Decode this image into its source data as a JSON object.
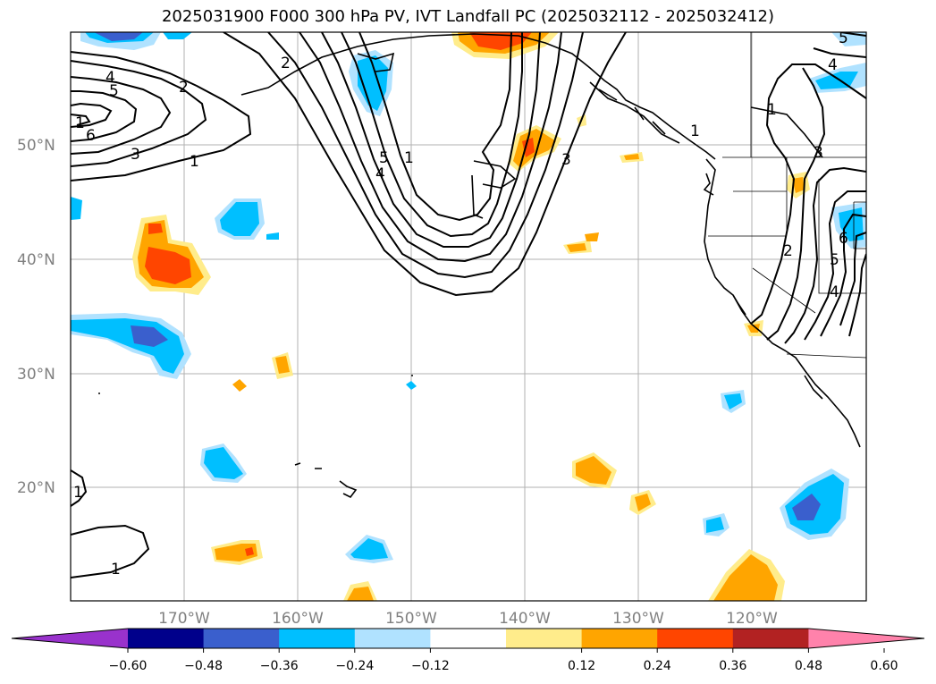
{
  "title": "2025031900 F000 300 hPa PV, IVT Landfall PC (2025032112 - 2025032412)",
  "lat_labels": [
    "50°N",
    "40°N",
    "30°N",
    "20°N"
  ],
  "lon_labels": [
    "170°W",
    "160°W",
    "150°W",
    "140°W",
    "130°W",
    "120°W"
  ],
  "colorbar": {
    "ticks": [
      "−0.60",
      "−0.48",
      "−0.36",
      "−0.24",
      "−0.12",
      "0.12",
      "0.24",
      "0.36",
      "0.48",
      "0.60"
    ],
    "colors": [
      "#9932cc",
      "#00008b",
      "#3a5fcd",
      "#00bfff",
      "#b0e2ff",
      "#ffffff",
      "#ffec8b",
      "#ffa500",
      "#ff4500",
      "#b22222",
      "#ff82ab"
    ]
  },
  "contour_labels": [
    "4",
    "5",
    "2",
    "1",
    "6",
    "3",
    "1",
    "2",
    "5",
    "4",
    "1",
    "3",
    "1",
    "5",
    "4",
    "1",
    "3",
    "2",
    "6",
    "5",
    "4",
    "1",
    "1"
  ]
}
